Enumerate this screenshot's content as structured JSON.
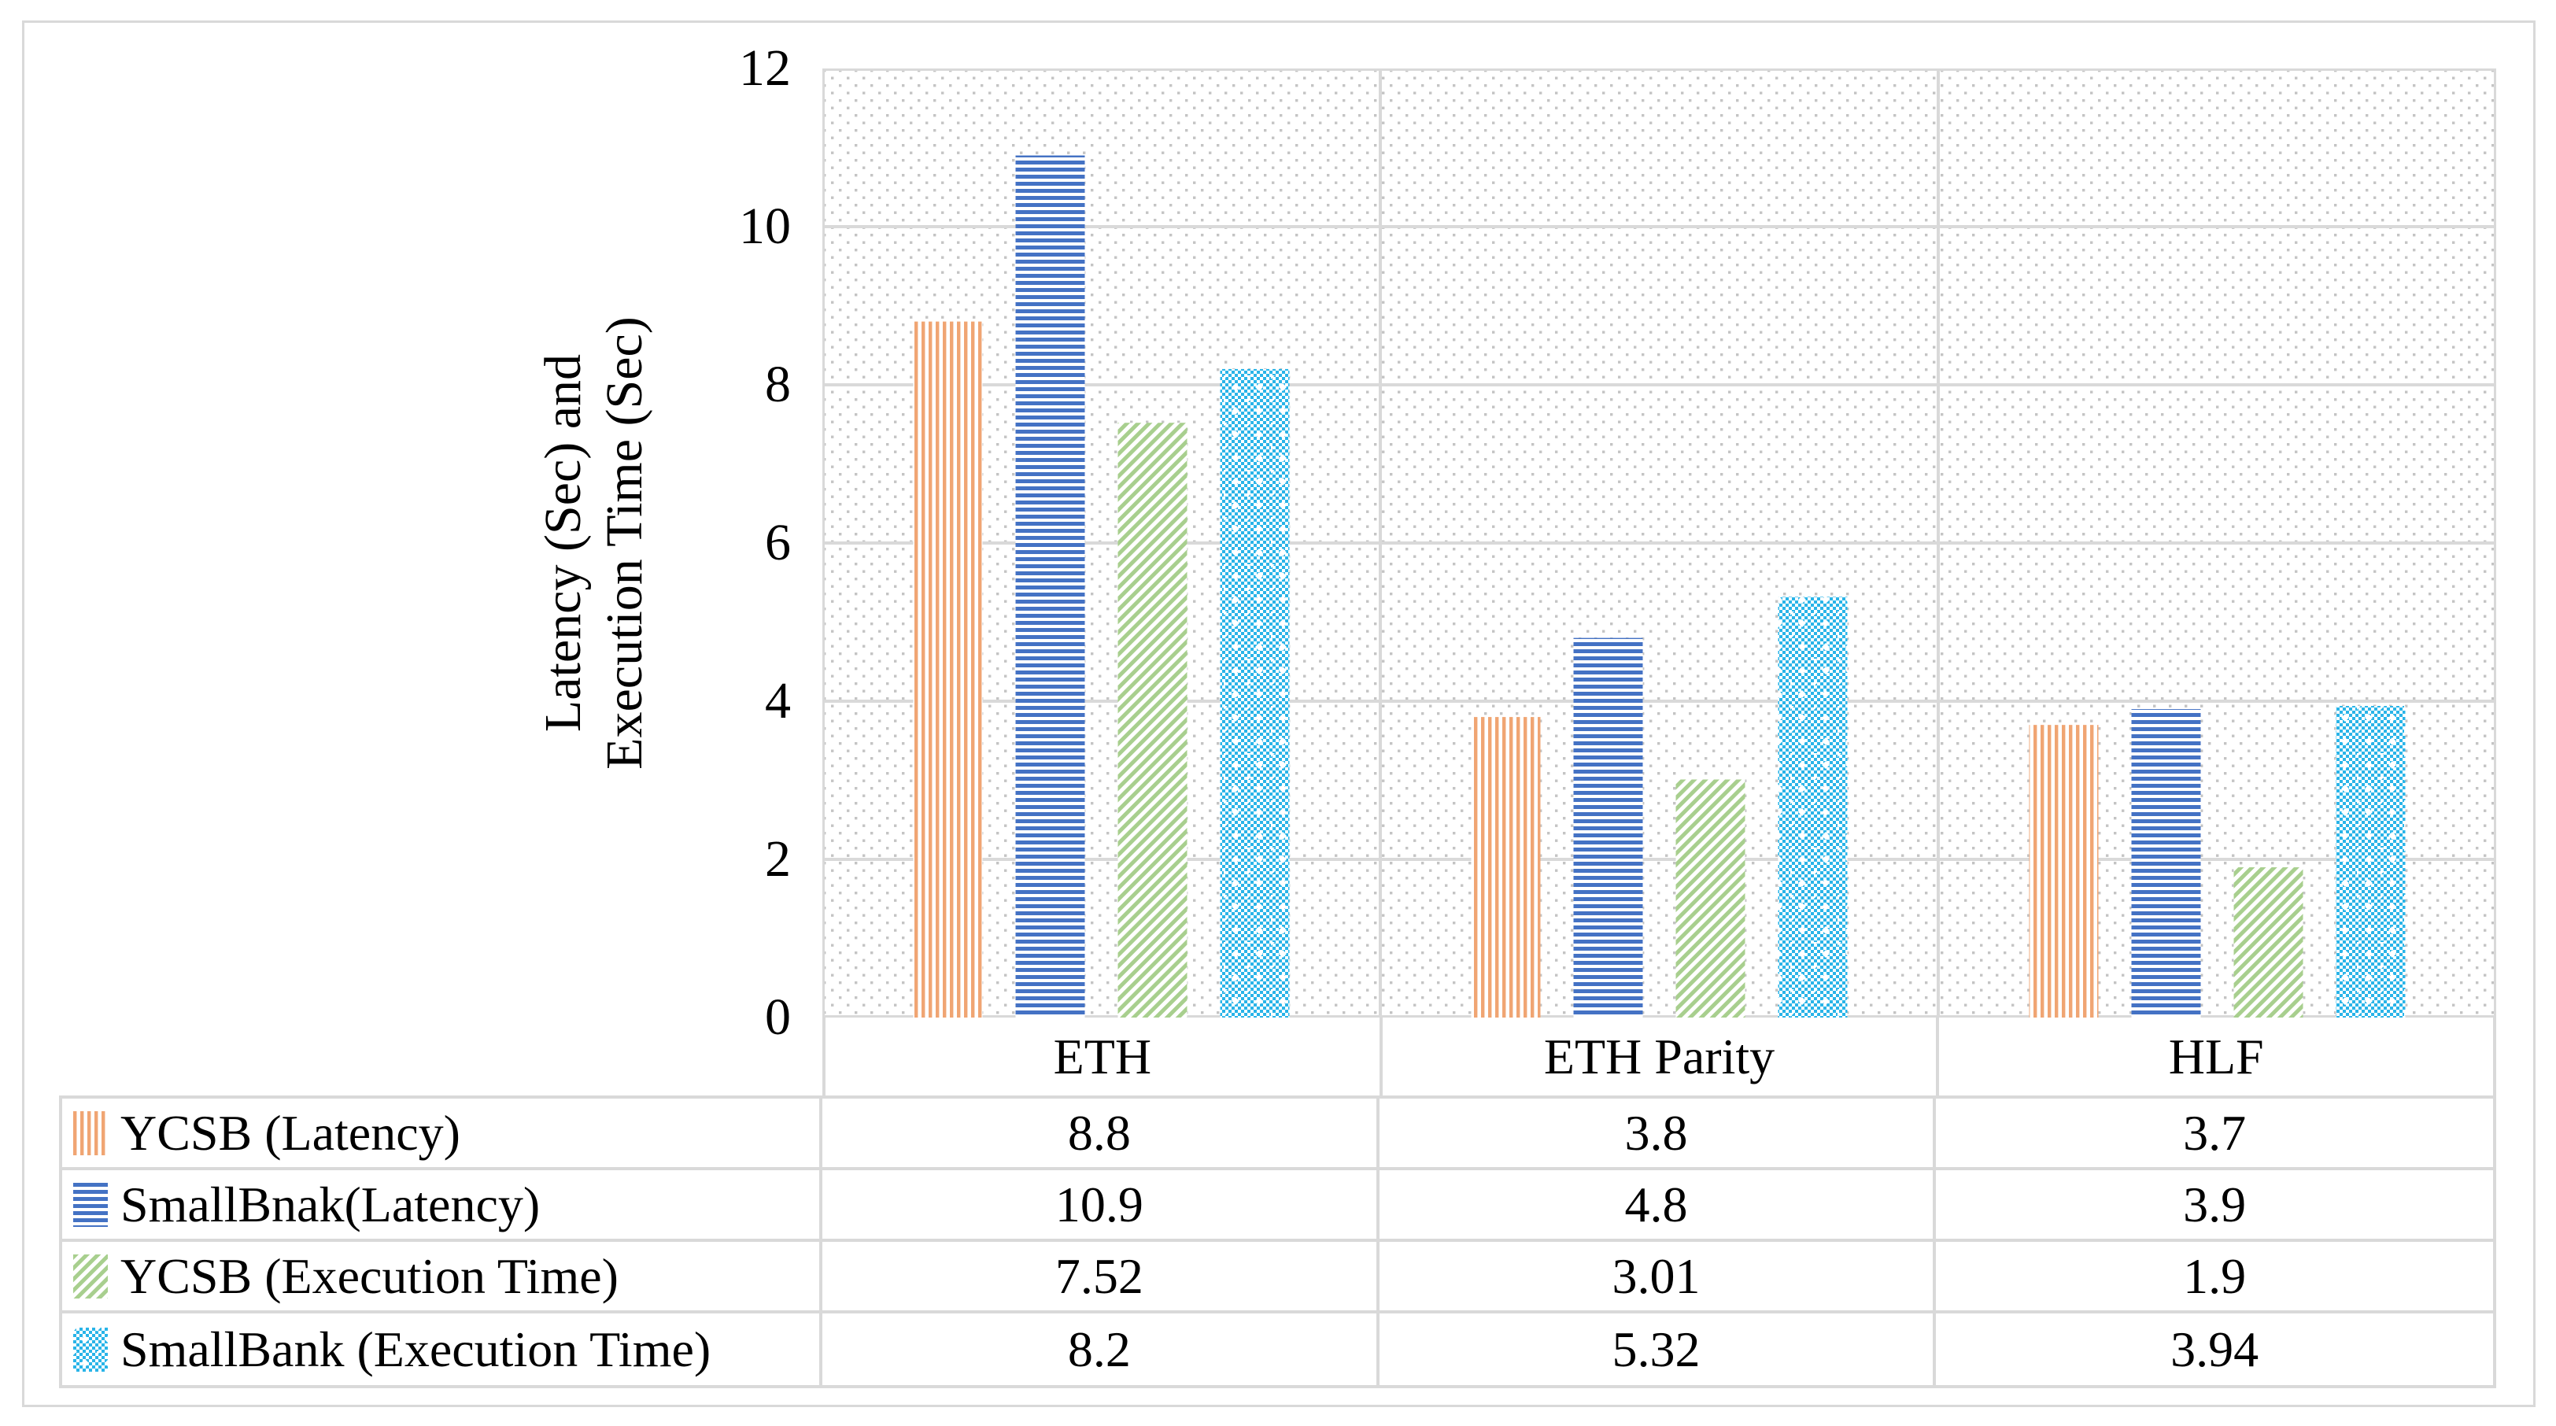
{
  "chart_data": {
    "type": "bar",
    "title": "",
    "categories": [
      "ETH",
      "ETH Parity",
      "HLF"
    ],
    "series": [
      {
        "name": "YCSB (Latency)",
        "values": [
          8.8,
          3.8,
          3.7
        ],
        "labels": [
          "8.8",
          "3.8",
          "3.7"
        ],
        "color": "#F0A573",
        "pattern": "vertical-stripes"
      },
      {
        "name": "SmallBnak(Latency)",
        "values": [
          10.9,
          4.8,
          3.9
        ],
        "labels": [
          "10.9",
          "4.8",
          "3.9"
        ],
        "color": "#4472C4",
        "pattern": "horizontal-stripes"
      },
      {
        "name": "YCSB (Execution Time)",
        "values": [
          7.52,
          3.01,
          1.9
        ],
        "labels": [
          "7.52",
          "3.01",
          "1.9"
        ],
        "color": "#A8CF8E",
        "pattern": "diagonal-stripes"
      },
      {
        "name": "SmallBank (Execution Time)",
        "values": [
          8.2,
          5.32,
          3.94
        ],
        "labels": [
          "8.2",
          "5.32",
          "3.94"
        ],
        "color": "#29B4E8",
        "pattern": "checkerboard"
      }
    ],
    "ylabel_line1": "Latency (Sec) and",
    "ylabel_line2": "Execution Time (Sec)",
    "xlabel": "",
    "ylim": [
      0,
      12
    ],
    "yticks": [
      "0",
      "2",
      "4",
      "6",
      "8",
      "10",
      "12"
    ],
    "grid": "horizontal gridlines + vertical category separators",
    "legend_position": "data-table rows below chart, keys at left",
    "plot_background": "light dotted pattern"
  },
  "colors": {
    "background": "#FFFFFF",
    "gridline": "#D9D9D9",
    "table_border": "#D9D9D9",
    "plot_dots": "#C4C4C4",
    "text": "#000000"
  }
}
